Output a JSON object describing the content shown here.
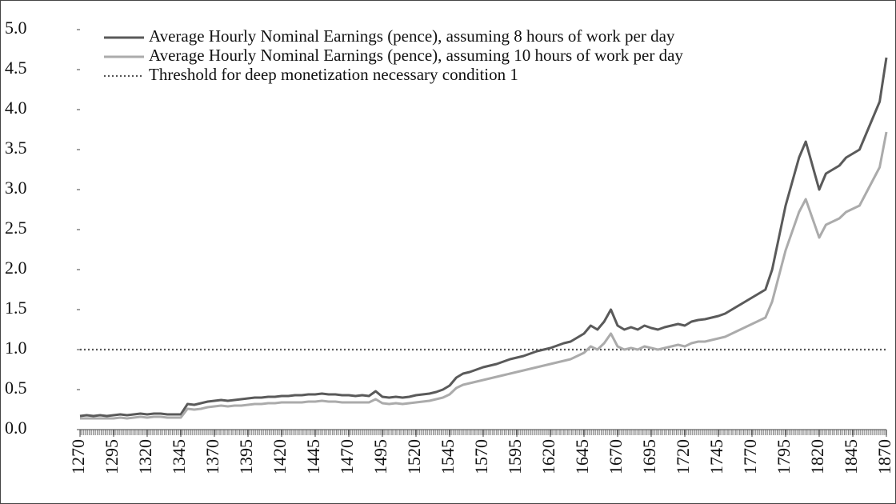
{
  "chart_data": {
    "type": "line",
    "x": [
      1270,
      1275,
      1280,
      1285,
      1290,
      1295,
      1300,
      1305,
      1310,
      1315,
      1320,
      1325,
      1330,
      1335,
      1340,
      1345,
      1350,
      1355,
      1360,
      1365,
      1370,
      1375,
      1380,
      1385,
      1390,
      1395,
      1400,
      1405,
      1410,
      1415,
      1420,
      1425,
      1430,
      1435,
      1440,
      1445,
      1450,
      1455,
      1460,
      1465,
      1470,
      1475,
      1480,
      1485,
      1490,
      1495,
      1500,
      1505,
      1510,
      1515,
      1520,
      1525,
      1530,
      1535,
      1540,
      1545,
      1550,
      1555,
      1560,
      1565,
      1570,
      1575,
      1580,
      1585,
      1590,
      1595,
      1600,
      1605,
      1610,
      1615,
      1620,
      1625,
      1630,
      1635,
      1640,
      1645,
      1650,
      1655,
      1660,
      1665,
      1670,
      1675,
      1680,
      1685,
      1690,
      1695,
      1700,
      1705,
      1710,
      1715,
      1720,
      1725,
      1730,
      1735,
      1740,
      1745,
      1750,
      1755,
      1760,
      1765,
      1770,
      1775,
      1780,
      1785,
      1790,
      1795,
      1800,
      1805,
      1810,
      1815,
      1820,
      1825,
      1830,
      1835,
      1840,
      1845,
      1850,
      1855,
      1860,
      1865,
      1870
    ],
    "series": [
      {
        "name": "Average Hourly Nominal Earnings (pence), assuming 8 hours of work per day",
        "color": "#5a5a5a",
        "values": [
          0.17,
          0.18,
          0.17,
          0.18,
          0.17,
          0.18,
          0.19,
          0.18,
          0.19,
          0.2,
          0.19,
          0.2,
          0.2,
          0.19,
          0.19,
          0.19,
          0.32,
          0.31,
          0.33,
          0.35,
          0.36,
          0.37,
          0.36,
          0.37,
          0.38,
          0.39,
          0.4,
          0.4,
          0.41,
          0.41,
          0.42,
          0.42,
          0.43,
          0.43,
          0.44,
          0.44,
          0.45,
          0.44,
          0.44,
          0.43,
          0.43,
          0.42,
          0.43,
          0.42,
          0.48,
          0.41,
          0.4,
          0.41,
          0.4,
          0.41,
          0.43,
          0.44,
          0.45,
          0.47,
          0.5,
          0.55,
          0.65,
          0.7,
          0.72,
          0.75,
          0.78,
          0.8,
          0.82,
          0.85,
          0.88,
          0.9,
          0.92,
          0.95,
          0.98,
          1.0,
          1.02,
          1.05,
          1.08,
          1.1,
          1.15,
          1.2,
          1.3,
          1.25,
          1.35,
          1.5,
          1.3,
          1.25,
          1.28,
          1.25,
          1.3,
          1.27,
          1.25,
          1.28,
          1.3,
          1.32,
          1.3,
          1.35,
          1.37,
          1.38,
          1.4,
          1.42,
          1.45,
          1.5,
          1.55,
          1.6,
          1.65,
          1.7,
          1.75,
          2.0,
          2.4,
          2.8,
          3.1,
          3.4,
          3.6,
          3.3,
          3.0,
          3.2,
          3.25,
          3.3,
          3.4,
          3.45,
          3.5,
          3.7,
          3.9,
          4.1,
          4.65
        ]
      },
      {
        "name": "Average Hourly Nominal Earnings (pence), assuming 10 hours of work per day",
        "color": "#ababab",
        "values": [
          0.14,
          0.14,
          0.14,
          0.14,
          0.14,
          0.14,
          0.15,
          0.14,
          0.15,
          0.16,
          0.15,
          0.16,
          0.16,
          0.15,
          0.15,
          0.15,
          0.26,
          0.25,
          0.26,
          0.28,
          0.29,
          0.3,
          0.29,
          0.3,
          0.3,
          0.31,
          0.32,
          0.32,
          0.33,
          0.33,
          0.34,
          0.34,
          0.34,
          0.34,
          0.35,
          0.35,
          0.36,
          0.35,
          0.35,
          0.34,
          0.34,
          0.34,
          0.34,
          0.34,
          0.38,
          0.33,
          0.32,
          0.33,
          0.32,
          0.33,
          0.34,
          0.35,
          0.36,
          0.38,
          0.4,
          0.44,
          0.52,
          0.56,
          0.58,
          0.6,
          0.62,
          0.64,
          0.66,
          0.68,
          0.7,
          0.72,
          0.74,
          0.76,
          0.78,
          0.8,
          0.82,
          0.84,
          0.86,
          0.88,
          0.92,
          0.96,
          1.04,
          1.0,
          1.08,
          1.2,
          1.04,
          1.0,
          1.02,
          1.0,
          1.04,
          1.02,
          1.0,
          1.02,
          1.04,
          1.06,
          1.04,
          1.08,
          1.1,
          1.1,
          1.12,
          1.14,
          1.16,
          1.2,
          1.24,
          1.28,
          1.32,
          1.36,
          1.4,
          1.6,
          1.92,
          2.24,
          2.48,
          2.72,
          2.88,
          2.64,
          2.4,
          2.56,
          2.6,
          2.64,
          2.72,
          2.76,
          2.8,
          2.96,
          3.12,
          3.28,
          3.72
        ]
      }
    ],
    "threshold": {
      "name": "Threshold for deep monetization necessary condition 1",
      "value": 1.0,
      "color": "#555555"
    },
    "xlim": [
      1270,
      1870
    ],
    "xticks": [
      1270,
      1295,
      1320,
      1345,
      1370,
      1395,
      1420,
      1445,
      1470,
      1495,
      1520,
      1545,
      1570,
      1595,
      1620,
      1645,
      1670,
      1695,
      1720,
      1745,
      1770,
      1795,
      1820,
      1845,
      1870
    ],
    "ylim": [
      0,
      5
    ],
    "yticks": [
      {
        "value": 0,
        "label": "0.0"
      },
      0.5,
      {
        "value": 1,
        "label": "1.0"
      },
      1.5,
      {
        "value": 2,
        "label": "2.0"
      },
      2.5,
      {
        "value": 3,
        "label": "3.0"
      },
      3.5,
      {
        "value": 4,
        "label": "4.0"
      },
      4.5,
      {
        "value": 5,
        "label": "5.0"
      }
    ],
    "legend": "top-left"
  }
}
